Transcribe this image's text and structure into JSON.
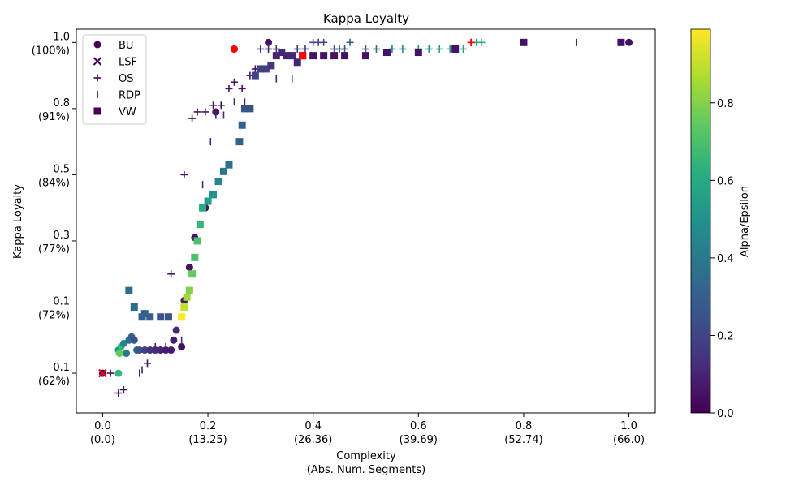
{
  "chart_data": {
    "type": "scatter",
    "title": "Kappa Loyalty",
    "xlabel": "Complexity",
    "xlabel_line2": "(Abs. Num. Segments)",
    "ylabel": "Kappa Loyalty",
    "colorbar_label": "Alpha/Epsilon",
    "xlim": [
      -0.05,
      1.05
    ],
    "ylim": [
      -0.12,
      1.04
    ],
    "x_ticks": [
      {
        "v": 0.0,
        "label": "0.0",
        "sub": "(0.0)"
      },
      {
        "v": 0.2,
        "label": "0.2",
        "sub": "(13.25)"
      },
      {
        "v": 0.4,
        "label": "0.4",
        "sub": "(26.36)"
      },
      {
        "v": 0.6,
        "label": "0.6",
        "sub": "(39.69)"
      },
      {
        "v": 0.8,
        "label": "0.8",
        "sub": "(52.74)"
      },
      {
        "v": 1.0,
        "label": "1.0",
        "sub": "(66.0)"
      }
    ],
    "y_ticks": [
      {
        "v": 1.0,
        "label": "1.0",
        "sub": "(100%)"
      },
      {
        "v": 0.8,
        "label": "0.8",
        "sub": "(91%)"
      },
      {
        "v": 0.6,
        "label": "0.5",
        "sub": "(84%)"
      },
      {
        "v": 0.4,
        "label": "0.3",
        "sub": "(77%)"
      },
      {
        "v": 0.2,
        "label": "0.1",
        "sub": "(72%)"
      },
      {
        "v": 0.0,
        "label": "-0.1",
        "sub": "(62%)"
      }
    ],
    "colorbar_ticks": [
      {
        "v": 0.0,
        "label": "0.0"
      },
      {
        "v": 0.2,
        "label": "0.2"
      },
      {
        "v": 0.4,
        "label": "0.4"
      },
      {
        "v": 0.6,
        "label": "0.6"
      },
      {
        "v": 0.8,
        "label": "0.8"
      }
    ],
    "colorbar_range": [
      0.0,
      0.99
    ],
    "legend_position": "top-left",
    "series": [
      {
        "name": "BU",
        "marker": "circle",
        "points": [
          [
            0.0,
            0.0,
            0.05
          ],
          [
            0.03,
            0.07,
            0.5
          ],
          [
            0.035,
            0.08,
            0.65
          ],
          [
            0.04,
            0.09,
            0.45
          ],
          [
            0.045,
            0.06,
            0.4
          ],
          [
            0.05,
            0.1,
            0.35
          ],
          [
            0.055,
            0.11,
            0.3
          ],
          [
            0.06,
            0.1,
            0.25
          ],
          [
            0.065,
            0.07,
            0.3
          ],
          [
            0.07,
            0.07,
            0.25
          ],
          [
            0.08,
            0.07,
            0.2
          ],
          [
            0.09,
            0.07,
            0.15
          ],
          [
            0.1,
            0.07,
            0.12
          ],
          [
            0.11,
            0.07,
            0.1
          ],
          [
            0.12,
            0.07,
            0.08
          ],
          [
            0.13,
            0.07,
            0.07
          ],
          [
            0.135,
            0.1,
            0.08
          ],
          [
            0.14,
            0.13,
            0.1
          ],
          [
            0.15,
            0.08,
            0.05
          ],
          [
            0.155,
            0.22,
            0.08
          ],
          [
            0.165,
            0.32,
            0.05
          ],
          [
            0.175,
            0.41,
            0.06
          ],
          [
            0.195,
            0.5,
            0.05
          ],
          [
            0.215,
            0.79,
            0.05
          ],
          [
            0.315,
            1.0,
            0.05
          ],
          [
            1.0,
            1.0,
            0.05
          ],
          [
            0.03,
            0.0,
            0.65
          ],
          [
            0.032,
            0.06,
            0.75
          ],
          [
            0.25,
            0.98,
            0.0
          ]
        ]
      },
      {
        "name": "LSF",
        "marker": "x",
        "points": [
          [
            0.0,
            0.0,
            0.1
          ]
        ]
      },
      {
        "name": "OS",
        "marker": "plus",
        "points": [
          [
            0.015,
            0.0,
            0.05
          ],
          [
            0.03,
            -0.06,
            0.05
          ],
          [
            0.04,
            -0.05,
            0.05
          ],
          [
            0.085,
            0.03,
            0.05
          ],
          [
            0.13,
            0.3,
            0.05
          ],
          [
            0.155,
            0.6,
            0.05
          ],
          [
            0.17,
            0.77,
            0.05
          ],
          [
            0.18,
            0.79,
            0.05
          ],
          [
            0.195,
            0.79,
            0.05
          ],
          [
            0.21,
            0.81,
            0.05
          ],
          [
            0.225,
            0.81,
            0.05
          ],
          [
            0.24,
            0.86,
            0.05
          ],
          [
            0.25,
            0.88,
            0.05
          ],
          [
            0.265,
            0.86,
            0.05
          ],
          [
            0.28,
            0.9,
            0.05
          ],
          [
            0.29,
            0.92,
            0.05
          ],
          [
            0.3,
            0.98,
            0.1
          ],
          [
            0.315,
            0.98,
            0.1
          ],
          [
            0.33,
            0.98,
            0.15
          ],
          [
            0.37,
            0.98,
            0.15
          ],
          [
            0.385,
            0.98,
            0.15
          ],
          [
            0.4,
            1.0,
            0.2
          ],
          [
            0.41,
            1.0,
            0.2
          ],
          [
            0.42,
            1.0,
            0.2
          ],
          [
            0.44,
            0.98,
            0.25
          ],
          [
            0.45,
            0.98,
            0.25
          ],
          [
            0.46,
            0.98,
            0.25
          ],
          [
            0.47,
            1.0,
            0.3
          ],
          [
            0.5,
            0.98,
            0.3
          ],
          [
            0.52,
            0.98,
            0.35
          ],
          [
            0.55,
            0.98,
            0.4
          ],
          [
            0.57,
            0.98,
            0.45
          ],
          [
            0.6,
            0.98,
            0.5
          ],
          [
            0.62,
            0.98,
            0.5
          ],
          [
            0.64,
            0.98,
            0.55
          ],
          [
            0.66,
            0.98,
            0.55
          ],
          [
            0.685,
            0.98,
            0.6
          ],
          [
            0.7,
            1.0,
            0.0
          ],
          [
            0.71,
            1.0,
            0.6
          ],
          [
            0.72,
            1.0,
            0.6
          ]
        ]
      },
      {
        "name": "RDP",
        "marker": "vline",
        "points": [
          [
            0.07,
            0.0,
            0.1
          ],
          [
            0.075,
            0.01,
            0.1
          ],
          [
            0.1,
            0.08,
            0.1
          ],
          [
            0.12,
            0.08,
            0.1
          ],
          [
            0.15,
            0.1,
            0.1
          ],
          [
            0.17,
            0.35,
            0.1
          ],
          [
            0.175,
            0.4,
            0.1
          ],
          [
            0.19,
            0.57,
            0.1
          ],
          [
            0.205,
            0.7,
            0.1
          ],
          [
            0.215,
            0.78,
            0.1
          ],
          [
            0.23,
            0.78,
            0.1
          ],
          [
            0.25,
            0.82,
            0.1
          ],
          [
            0.27,
            0.82,
            0.1
          ],
          [
            0.33,
            0.89,
            0.1
          ],
          [
            0.36,
            0.89,
            0.1
          ],
          [
            0.9,
            1.0,
            0.1
          ]
        ]
      },
      {
        "name": "VW",
        "marker": "square",
        "points": [
          [
            0.05,
            0.25,
            0.35
          ],
          [
            0.06,
            0.2,
            0.35
          ],
          [
            0.075,
            0.17,
            0.3
          ],
          [
            0.08,
            0.18,
            0.3
          ],
          [
            0.09,
            0.17,
            0.3
          ],
          [
            0.11,
            0.17,
            0.25
          ],
          [
            0.125,
            0.17,
            0.25
          ],
          [
            0.15,
            0.17,
            0.99
          ],
          [
            0.155,
            0.2,
            0.9
          ],
          [
            0.16,
            0.23,
            0.85
          ],
          [
            0.165,
            0.25,
            0.8
          ],
          [
            0.17,
            0.3,
            0.75
          ],
          [
            0.175,
            0.35,
            0.7
          ],
          [
            0.18,
            0.4,
            0.7
          ],
          [
            0.185,
            0.45,
            0.65
          ],
          [
            0.19,
            0.5,
            0.6
          ],
          [
            0.2,
            0.52,
            0.55
          ],
          [
            0.21,
            0.54,
            0.5
          ],
          [
            0.22,
            0.58,
            0.45
          ],
          [
            0.23,
            0.61,
            0.4
          ],
          [
            0.24,
            0.63,
            0.35
          ],
          [
            0.26,
            0.7,
            0.3
          ],
          [
            0.265,
            0.75,
            0.3
          ],
          [
            0.27,
            0.8,
            0.25
          ],
          [
            0.28,
            0.8,
            0.25
          ],
          [
            0.29,
            0.9,
            0.2
          ],
          [
            0.3,
            0.92,
            0.2
          ],
          [
            0.31,
            0.92,
            0.2
          ],
          [
            0.32,
            0.93,
            0.15
          ],
          [
            0.33,
            0.96,
            0.1
          ],
          [
            0.34,
            0.97,
            0.1
          ],
          [
            0.35,
            0.96,
            0.1
          ],
          [
            0.36,
            0.96,
            0.1
          ],
          [
            0.37,
            0.94,
            0.1
          ],
          [
            0.38,
            0.96,
            0.0
          ],
          [
            0.4,
            0.96,
            0.05
          ],
          [
            0.42,
            0.96,
            0.05
          ],
          [
            0.44,
            0.96,
            0.05
          ],
          [
            0.46,
            0.96,
            0.05
          ],
          [
            0.5,
            0.96,
            0.05
          ],
          [
            0.54,
            0.97,
            0.05
          ],
          [
            0.6,
            0.97,
            0.05
          ],
          [
            0.67,
            0.98,
            0.05
          ],
          [
            0.8,
            1.0,
            0.05
          ],
          [
            0.985,
            1.0,
            0.05
          ]
        ]
      }
    ]
  }
}
